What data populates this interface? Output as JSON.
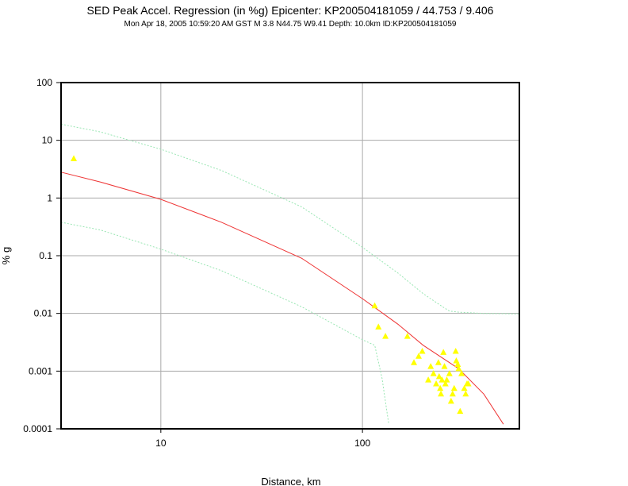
{
  "chart_data": {
    "type": "scatter",
    "title": "SED Peak Accel. Regression (in %g) Epicenter: KP200504181059 / 44.753 / 9.406",
    "subtitle": "Mon Apr 18, 2005 10:59:20 AM GST    M 3.8    N44.75 W9.41    Depth: 10.0km    ID:KP200504181059",
    "xlabel": "Distance, km",
    "ylabel": "% g",
    "x_scale": "log",
    "y_scale": "log",
    "xlim": [
      3.2,
      600
    ],
    "ylim": [
      0.0001,
      100
    ],
    "grid": true,
    "x_ticks": [
      {
        "value": 10,
        "label": "10"
      },
      {
        "value": 100,
        "label": "100"
      }
    ],
    "y_ticks": [
      {
        "value": 0.0001,
        "label": "0.0001"
      },
      {
        "value": 0.001,
        "label": "0.001"
      },
      {
        "value": 0.01,
        "label": "0.01"
      },
      {
        "value": 0.1,
        "label": "0.1"
      },
      {
        "value": 1,
        "label": "1"
      },
      {
        "value": 10,
        "label": "10"
      },
      {
        "value": 100,
        "label": "100"
      }
    ],
    "colors": {
      "regression": "#ee3333",
      "bounds": "#99e6b3",
      "observations": "#ffff00",
      "grid": "#aaaaaa"
    },
    "series": [
      {
        "role": "regression",
        "style": "line",
        "x": [
          3.2,
          5,
          10,
          20,
          50,
          100,
          150,
          200,
          300,
          400,
          500
        ],
        "y": [
          2.8,
          1.9,
          0.95,
          0.38,
          0.09,
          0.018,
          0.0065,
          0.0028,
          0.0011,
          0.0004,
          0.00012
        ]
      },
      {
        "role": "upper-bound",
        "style": "dotted",
        "x": [
          3.2,
          5,
          10,
          20,
          50,
          100,
          150,
          200,
          250,
          270,
          300,
          400,
          600
        ],
        "y": [
          19,
          14,
          7,
          3,
          0.7,
          0.14,
          0.05,
          0.022,
          0.013,
          0.011,
          0.0105,
          0.01,
          0.0098
        ]
      },
      {
        "role": "lower-bound",
        "style": "dotted",
        "x": [
          3.2,
          5,
          10,
          20,
          50,
          100,
          115,
          125,
          135
        ],
        "y": [
          0.38,
          0.28,
          0.13,
          0.055,
          0.013,
          0.0035,
          0.0028,
          0.00075,
          0.00012
        ]
      },
      {
        "role": "observations",
        "style": "markers",
        "x": [
          3.7,
          115,
          120,
          130,
          167,
          180,
          190,
          198,
          212,
          218,
          225,
          232,
          238,
          240,
          243,
          245,
          248,
          252,
          255,
          258,
          262,
          270,
          275,
          280,
          285,
          290,
          292,
          297,
          300,
          305,
          310,
          320,
          325,
          330,
          335
        ],
        "y": [
          4.8,
          0.0135,
          0.0058,
          0.004,
          0.004,
          0.0014,
          0.0018,
          0.0022,
          0.0007,
          0.0012,
          0.0009,
          0.0006,
          0.0014,
          0.0008,
          0.0005,
          0.0004,
          0.0007,
          0.0021,
          0.0012,
          0.0006,
          0.0007,
          0.0009,
          0.0003,
          0.0004,
          0.0005,
          0.0022,
          0.0015,
          0.0013,
          0.0011,
          0.0002,
          0.0009,
          0.0005,
          0.0004,
          0.0006,
          0.0006
        ]
      }
    ]
  }
}
